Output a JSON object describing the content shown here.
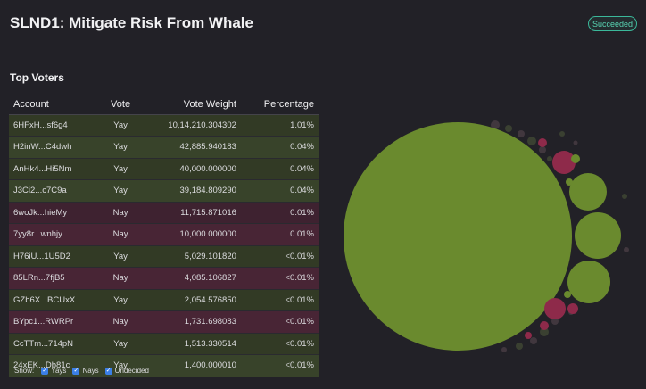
{
  "page": {
    "title": "SLND1: Mitigate Risk From Whale",
    "status": "Succeeded"
  },
  "top_voters": {
    "title": "Top Voters",
    "columns": [
      "Account",
      "Vote",
      "Vote Weight",
      "Percentage"
    ],
    "rows": [
      {
        "account": "6HFxH...sf6g4",
        "vote": "Yay",
        "weight": "10,14,210.304302",
        "pct": "1.01%"
      },
      {
        "account": "H2inW...C4dwh",
        "vote": "Yay",
        "weight": "42,885.940183",
        "pct": "0.04%"
      },
      {
        "account": "AnHk4...Hi5Nm",
        "vote": "Yay",
        "weight": "40,000.000000",
        "pct": "0.04%"
      },
      {
        "account": "J3Ci2...c7C9a",
        "vote": "Yay",
        "weight": "39,184.809290",
        "pct": "0.04%"
      },
      {
        "account": "6woJk...hieMy",
        "vote": "Nay",
        "weight": "11,715.871016",
        "pct": "0.01%"
      },
      {
        "account": "7yy8r...wnhjy",
        "vote": "Nay",
        "weight": "10,000.000000",
        "pct": "0.01%"
      },
      {
        "account": "H76iU...1U5D2",
        "vote": "Yay",
        "weight": "5,029.101820",
        "pct": "<0.01%"
      },
      {
        "account": "85LRn...7fjB5",
        "vote": "Nay",
        "weight": "4,085.106827",
        "pct": "<0.01%"
      },
      {
        "account": "GZb6X...BCUxX",
        "vote": "Yay",
        "weight": "2,054.576850",
        "pct": "<0.01%"
      },
      {
        "account": "BYpc1...RWRPr",
        "vote": "Nay",
        "weight": "1,731.698083",
        "pct": "<0.01%"
      },
      {
        "account": "CcTTm...714pN",
        "vote": "Yay",
        "weight": "1,513.330514",
        "pct": "<0.01%"
      },
      {
        "account": "24xEK...Db81c",
        "vote": "Yay",
        "weight": "1,400.000010",
        "pct": "<0.01%"
      }
    ]
  },
  "filters": {
    "label": "Show:",
    "options": [
      {
        "label": "Yays",
        "checked": true
      },
      {
        "label": "Nays",
        "checked": true
      },
      {
        "label": "Undecided",
        "checked": true
      }
    ]
  },
  "colors": {
    "yay": "#6a8a2e",
    "nay": "#8e2a4a",
    "accent": "#3bb89a"
  }
}
